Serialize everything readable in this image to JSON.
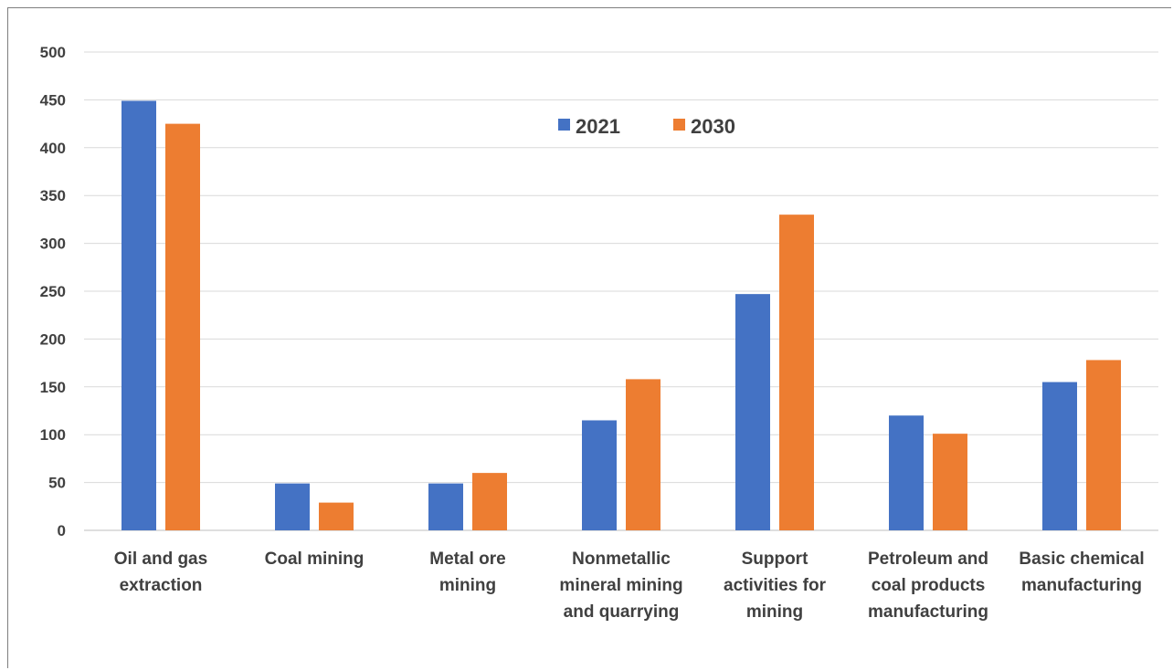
{
  "chart_data": {
    "type": "bar",
    "title": "",
    "xlabel": "",
    "ylabel": "",
    "ylim": [
      0,
      500
    ],
    "yticks": [
      0,
      50,
      100,
      150,
      200,
      250,
      300,
      350,
      400,
      450,
      500
    ],
    "grid": true,
    "legend_position": "top-center",
    "categories": [
      [
        "Oil and gas",
        "extraction"
      ],
      [
        "Coal mining"
      ],
      [
        "Metal ore",
        "mining"
      ],
      [
        "Nonmetallic",
        "mineral mining",
        "and quarrying"
      ],
      [
        "Support",
        "activities for",
        "mining"
      ],
      [
        "Petroleum and",
        "coal products",
        "manufacturing"
      ],
      [
        "Basic chemical",
        "manufacturing"
      ]
    ],
    "series": [
      {
        "name": "2021",
        "color": "#4472c4",
        "values": [
          449,
          49,
          49,
          115,
          247,
          120,
          155
        ]
      },
      {
        "name": "2030",
        "color": "#ed7d31",
        "values": [
          425,
          29,
          60,
          158,
          330,
          101,
          178
        ]
      }
    ]
  }
}
